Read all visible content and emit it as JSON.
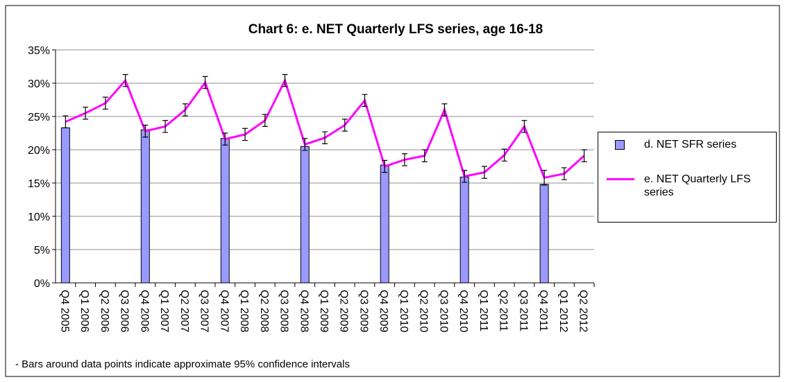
{
  "chart_data": {
    "type": "bar_line",
    "title": "Chart 6: e. NET Quarterly LFS series, age 16-18",
    "note": "- Bars around data points indicate approximate 95% confidence intervals",
    "categories": [
      "Q4 2005",
      "Q1 2006",
      "Q2 2006",
      "Q3 2006",
      "Q4 2006",
      "Q1 2007",
      "Q2 2007",
      "Q3 2007",
      "Q4 2007",
      "Q1 2008",
      "Q2 2008",
      "Q3 2008",
      "Q4 2008",
      "Q1 2009",
      "Q2 2009",
      "Q3 2009",
      "Q4 2009",
      "Q1 2010",
      "Q2 2010",
      "Q3 2010",
      "Q4 2010",
      "Q1 2011",
      "Q2 2011",
      "Q3 2011",
      "Q4 2011",
      "Q1 2012",
      "Q2 2012"
    ],
    "series": [
      {
        "name": "d. NET SFR series",
        "type": "bar",
        "color": "#9999ff",
        "values": [
          23.3,
          null,
          null,
          null,
          23.0,
          null,
          null,
          null,
          21.7,
          null,
          null,
          null,
          20.5,
          null,
          null,
          null,
          17.7,
          null,
          null,
          null,
          15.9,
          null,
          null,
          null,
          14.8,
          null,
          null
        ]
      },
      {
        "name": "e. NET Quarterly LFS series",
        "type": "line",
        "color": "#ff00ff",
        "values": [
          24.2,
          25.5,
          27.0,
          30.4,
          22.8,
          23.5,
          26.0,
          30.1,
          21.6,
          22.3,
          24.4,
          30.4,
          20.8,
          21.8,
          23.7,
          27.4,
          17.5,
          18.5,
          19.1,
          26.0,
          16.0,
          16.6,
          19.2,
          23.5,
          15.8,
          16.4,
          19.1
        ],
        "errors": [
          0.9,
          0.9,
          0.9,
          0.9,
          0.9,
          0.9,
          0.9,
          0.9,
          0.9,
          0.9,
          0.9,
          0.9,
          0.9,
          0.9,
          0.9,
          0.9,
          0.9,
          0.9,
          0.9,
          0.9,
          0.9,
          0.9,
          0.9,
          0.9,
          1.1,
          0.9,
          0.9
        ]
      }
    ],
    "ylim": [
      0,
      35
    ],
    "yticks": [
      {
        "value": 0,
        "label": "0%"
      },
      {
        "value": 5,
        "label": "5%"
      },
      {
        "value": 10,
        "label": "10%"
      },
      {
        "value": 15,
        "label": "15%"
      },
      {
        "value": 20,
        "label": "20%"
      },
      {
        "value": 25,
        "label": "25%"
      },
      {
        "value": 30,
        "label": "30%"
      },
      {
        "value": 35,
        "label": "35%"
      }
    ],
    "grid": true,
    "legend": "right"
  }
}
